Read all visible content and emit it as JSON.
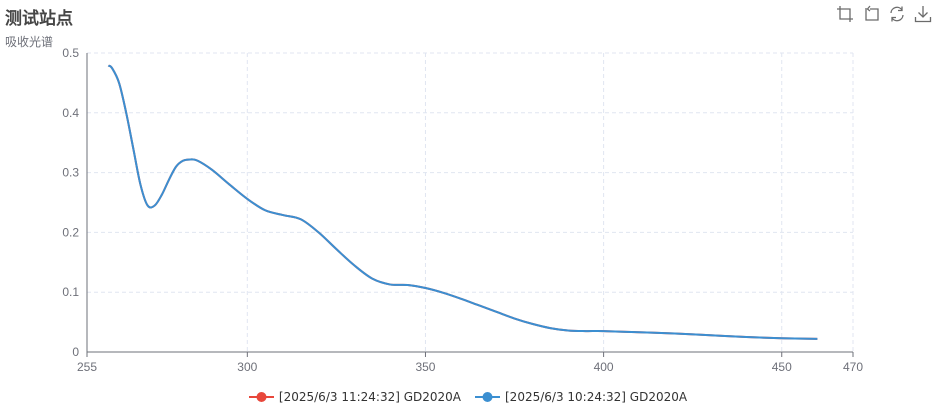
{
  "header": {
    "title": "测试站点",
    "subtitle": "吸收光谱"
  },
  "toolbox": [
    {
      "name": "zoom-icon"
    },
    {
      "name": "zoom-reset-icon"
    },
    {
      "name": "restore-icon"
    },
    {
      "name": "download-icon"
    }
  ],
  "chart_data": {
    "type": "line",
    "xlim": [
      255,
      470
    ],
    "ylim": [
      0,
      0.5
    ],
    "x_ticks": [
      255,
      300,
      350,
      400,
      450,
      470
    ],
    "y_ticks": [
      0,
      0.1,
      0.2,
      0.3,
      0.4,
      0.5
    ],
    "grid": true,
    "legend_position": "bottom-center",
    "series": [
      {
        "name": "[2025/6/3 11:24:32] GD2020A",
        "color": "#e8473b",
        "x": [
          261,
          262,
          264,
          266,
          268,
          270,
          272,
          274,
          276,
          278,
          280,
          282,
          284,
          286,
          290,
          295,
          300,
          305,
          310,
          315,
          320,
          325,
          330,
          335,
          340,
          345,
          350,
          355,
          360,
          365,
          370,
          375,
          380,
          385,
          390,
          395,
          400,
          410,
          420,
          430,
          440,
          450,
          460
        ],
        "y": [
          0.479,
          0.475,
          0.45,
          0.4,
          0.34,
          0.28,
          0.245,
          0.245,
          0.263,
          0.288,
          0.31,
          0.32,
          0.322,
          0.32,
          0.305,
          0.28,
          0.256,
          0.237,
          0.229,
          0.222,
          0.2,
          0.172,
          0.145,
          0.123,
          0.113,
          0.112,
          0.107,
          0.099,
          0.089,
          0.078,
          0.067,
          0.056,
          0.047,
          0.04,
          0.036,
          0.035,
          0.035,
          0.033,
          0.031,
          0.028,
          0.025,
          0.023,
          0.022
        ]
      },
      {
        "name": "[2025/6/3 10:24:32] GD2020A",
        "color": "#3b8fd1",
        "x": [
          261,
          262,
          264,
          266,
          268,
          270,
          272,
          274,
          276,
          278,
          280,
          282,
          284,
          286,
          290,
          295,
          300,
          305,
          310,
          315,
          320,
          325,
          330,
          335,
          340,
          345,
          350,
          355,
          360,
          365,
          370,
          375,
          380,
          385,
          390,
          395,
          400,
          410,
          420,
          430,
          440,
          450,
          460
        ],
        "y": [
          0.479,
          0.475,
          0.45,
          0.4,
          0.34,
          0.28,
          0.245,
          0.245,
          0.263,
          0.288,
          0.31,
          0.32,
          0.322,
          0.32,
          0.305,
          0.28,
          0.256,
          0.237,
          0.229,
          0.222,
          0.2,
          0.172,
          0.145,
          0.123,
          0.113,
          0.112,
          0.107,
          0.099,
          0.089,
          0.078,
          0.067,
          0.056,
          0.047,
          0.04,
          0.036,
          0.035,
          0.035,
          0.033,
          0.031,
          0.028,
          0.025,
          0.023,
          0.022
        ]
      }
    ]
  }
}
